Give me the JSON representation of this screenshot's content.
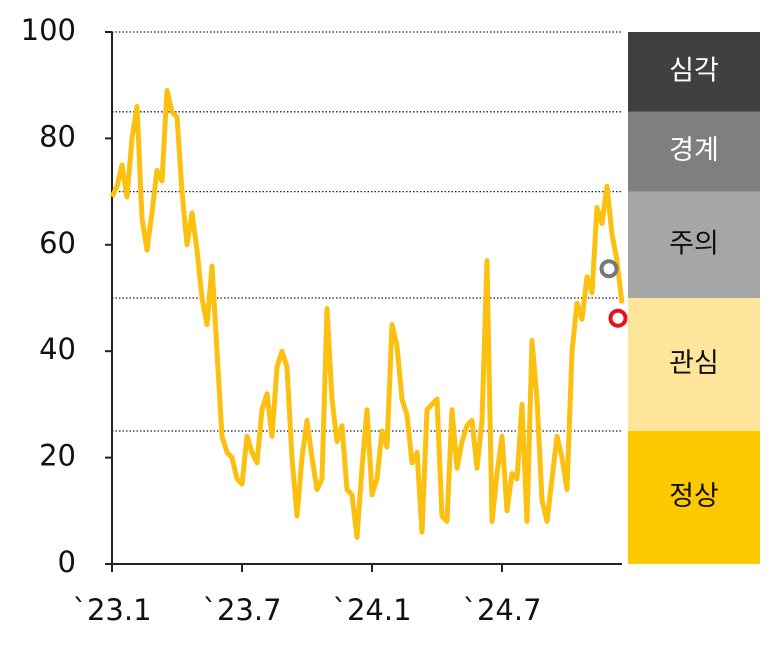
{
  "chart_data": {
    "type": "line",
    "categories": [
      "`23.1",
      null,
      null,
      null,
      null,
      null,
      null,
      null,
      null,
      null,
      null,
      null,
      null,
      null,
      null,
      null,
      null,
      null,
      null,
      null,
      null,
      null,
      null,
      null,
      null,
      null,
      "`23.7",
      null,
      null,
      null,
      null,
      null,
      null,
      null,
      null,
      null,
      null,
      null,
      null,
      null,
      null,
      null,
      null,
      null,
      null,
      null,
      null,
      null,
      null,
      null,
      null,
      null,
      "`24.1",
      null,
      null,
      null,
      null,
      null,
      null,
      null,
      null,
      null,
      null,
      null,
      null,
      null,
      null,
      null,
      null,
      null,
      null,
      null,
      null,
      null,
      null,
      null,
      null,
      null,
      "`24.7",
      null,
      null,
      null,
      null,
      null,
      null,
      null,
      null,
      null,
      null,
      null,
      null,
      null,
      null,
      null,
      null,
      null,
      null,
      null,
      null,
      null,
      null,
      null,
      null
    ],
    "series": [
      {
        "color": "#fcc010",
        "values": [
          69,
          71,
          75,
          69,
          80,
          86,
          65,
          59,
          66,
          74,
          72,
          89,
          85,
          84,
          70,
          60,
          66,
          59,
          50,
          45,
          56,
          40,
          24,
          21,
          20,
          16,
          15,
          24,
          21,
          19,
          29,
          32,
          24,
          37,
          40,
          37,
          20,
          9,
          20,
          27,
          20,
          14,
          16,
          48,
          31,
          23,
          26,
          14,
          13,
          5,
          18,
          29,
          13,
          16,
          25,
          22,
          45,
          41,
          31,
          28,
          19,
          21,
          6,
          29,
          30,
          31,
          9,
          8,
          29,
          18,
          23,
          26,
          27,
          18,
          27,
          57,
          8,
          17,
          24,
          10,
          17,
          16,
          30,
          8,
          42,
          31,
          12,
          8,
          16,
          24,
          20,
          14,
          40,
          49,
          46,
          54,
          51,
          67,
          64,
          71,
          62,
          57,
          49
        ]
      }
    ],
    "markers": [
      {
        "index": 99.4,
        "value": 55.5,
        "color": "#777777"
      },
      {
        "index": 101.2,
        "value": 46.2,
        "color": "#e8101a"
      }
    ],
    "levels": [
      {
        "name": "정상",
        "from": 0,
        "to": 25,
        "color": "#ffc900",
        "text_color": "#111111"
      },
      {
        "name": "관심",
        "from": 25,
        "to": 50,
        "color": "#ffe59a",
        "text_color": "#111111"
      },
      {
        "name": "주의",
        "from": 50,
        "to": 70,
        "color": "#a6a6a6",
        "text_color": "#111111"
      },
      {
        "name": "경계",
        "from": 70,
        "to": 85,
        "color": "#7f7f7f",
        "text_color": "#ffffff"
      },
      {
        "name": "심각",
        "from": 85,
        "to": 100,
        "color": "#404040",
        "text_color": "#ffffff"
      }
    ],
    "ylim": [
      0,
      100
    ],
    "yticks": [
      0,
      20,
      40,
      60,
      80,
      100
    ]
  }
}
